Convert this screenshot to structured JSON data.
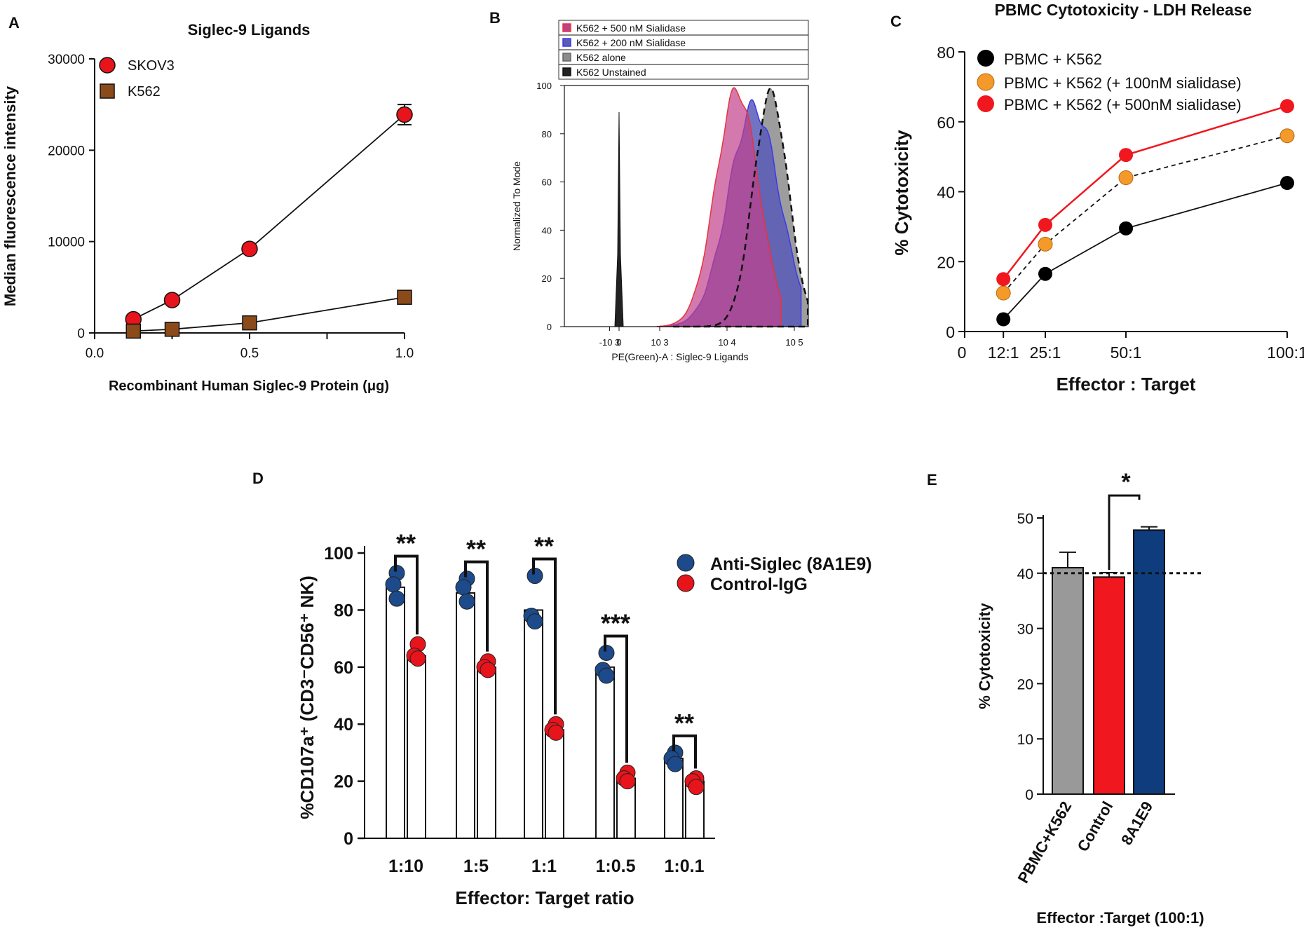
{
  "chart_data": [
    {
      "panel": "A",
      "type": "line",
      "title": "Siglec-9 Ligands",
      "xlabel": "Recombinant Human Siglec-9 Protein (μg)",
      "ylabel": "Median fluorescence intensity",
      "xlim": [
        0.0,
        1.0
      ],
      "ylim": [
        0,
        30000
      ],
      "xticks": [
        "0.0",
        "0.5",
        "1.0"
      ],
      "yticks": [
        "0",
        "10000",
        "20000",
        "30000"
      ],
      "x": [
        0.125,
        0.25,
        0.5,
        1.0
      ],
      "series": [
        {
          "name": "SKOV3",
          "color": "#e8141b",
          "marker": "circle",
          "values": [
            1500,
            3600,
            9200,
            23900
          ],
          "errors": [
            0,
            0,
            0,
            1100
          ]
        },
        {
          "name": "K562",
          "color": "#8a4a1a",
          "marker": "square",
          "values": [
            200,
            400,
            1100,
            3900
          ],
          "errors": [
            0,
            0,
            0,
            0
          ]
        }
      ]
    },
    {
      "panel": "B",
      "type": "area",
      "xlabel": "PE(Green)-A : Siglec-9 Ligands",
      "ylabel": "Normalized To Mode",
      "ylim": [
        0,
        100
      ],
      "xticks": [
        "-10 3",
        "0",
        "10 3",
        "10 4",
        "10 5"
      ],
      "yticks": [
        "0",
        "20",
        "40",
        "60",
        "80",
        "100"
      ],
      "series": [
        {
          "name": "K562 + 500 nM Sialidase",
          "color": "#e8343c",
          "fill": "#c0408a",
          "peak_log10": 4.15,
          "peak": 98
        },
        {
          "name": "K562 + 200 nM Sialidase",
          "color": "#3a3ae8",
          "fill": "#5b5bb8",
          "peak_log10": 4.4,
          "peak": 91
        },
        {
          "name": "K562 alone",
          "color": "#666666",
          "fill": "#8c8c8c",
          "peak_log10": 4.65,
          "peak": 97
        },
        {
          "name": "K562 Unstained",
          "color": "#111111",
          "fill": "#222222",
          "peak_log10": 0,
          "peak": 89
        }
      ]
    },
    {
      "panel": "C",
      "type": "line",
      "title": "PBMC Cytotoxicity - LDH Release",
      "xlabel": "Effector : Target",
      "ylabel": "% Cytotoxicity",
      "xlim": [
        0,
        100
      ],
      "ylim": [
        0,
        80
      ],
      "x": [
        12,
        25,
        50,
        100
      ],
      "xtick_labels": [
        "0",
        "12:1",
        "25:1",
        "50:1",
        "100:1"
      ],
      "yticks": [
        "0",
        "20",
        "40",
        "60",
        "80"
      ],
      "series": [
        {
          "name": "PBMC + K562",
          "color": "#000000",
          "values": [
            3.5,
            16.5,
            29.5,
            42.5
          ]
        },
        {
          "name": "PBMC + K562 (+ 100nM sialidase)",
          "color": "#f39a2b",
          "values": [
            11,
            25,
            44,
            56
          ]
        },
        {
          "name": "PBMC + K562 (+ 500nM sialidase)",
          "color": "#f0171e",
          "values": [
            15,
            30.5,
            50.5,
            64.5
          ]
        }
      ]
    },
    {
      "panel": "D",
      "type": "bar",
      "xlabel": "Effector: Target ratio",
      "ylabel": "%CD107a⁺ (CD3⁻CD56⁺ NK)",
      "ylim": [
        0,
        100
      ],
      "yticks": [
        "0",
        "20",
        "40",
        "60",
        "80",
        "100"
      ],
      "categories": [
        "1:10",
        "1:5",
        "1:1",
        "1:0.5",
        "1:0.1"
      ],
      "significance": [
        "**",
        "**",
        "**",
        "***",
        "**"
      ],
      "series": [
        {
          "name": "Anti-Siglec (8A1E9)",
          "color": "#1d4a8a",
          "values": [
            88,
            86,
            80,
            60,
            28
          ],
          "points": [
            [
              93,
              89,
              84
            ],
            [
              91,
              88,
              83
            ],
            [
              92,
              78,
              76
            ],
            [
              65,
              59,
              57
            ],
            [
              30,
              28,
              26
            ]
          ]
        },
        {
          "name": "Control-IgG",
          "color": "#e8141b",
          "values": [
            64,
            60,
            38,
            21,
            20
          ],
          "points": [
            [
              68,
              64,
              63
            ],
            [
              62,
              60,
              59
            ],
            [
              40,
              38,
              37
            ],
            [
              23,
              21,
              20
            ],
            [
              21,
              20,
              18
            ]
          ]
        }
      ]
    },
    {
      "panel": "E",
      "type": "bar",
      "xlabel": "Effector :Target (100:1)",
      "ylabel": "% Cytotoxicity",
      "ylim": [
        0,
        50
      ],
      "yticks": [
        "0",
        "10",
        "20",
        "30",
        "40",
        "50"
      ],
      "categories": [
        "PBMC+K562",
        "Control",
        "8A1E9"
      ],
      "values": [
        41,
        39.3,
        47.8
      ],
      "errors": [
        2.8,
        0.8,
        0.6
      ],
      "colors": [
        "#999999",
        "#f0171e",
        "#0f3c7c"
      ],
      "reference_line": 40,
      "significance": "*"
    }
  ]
}
